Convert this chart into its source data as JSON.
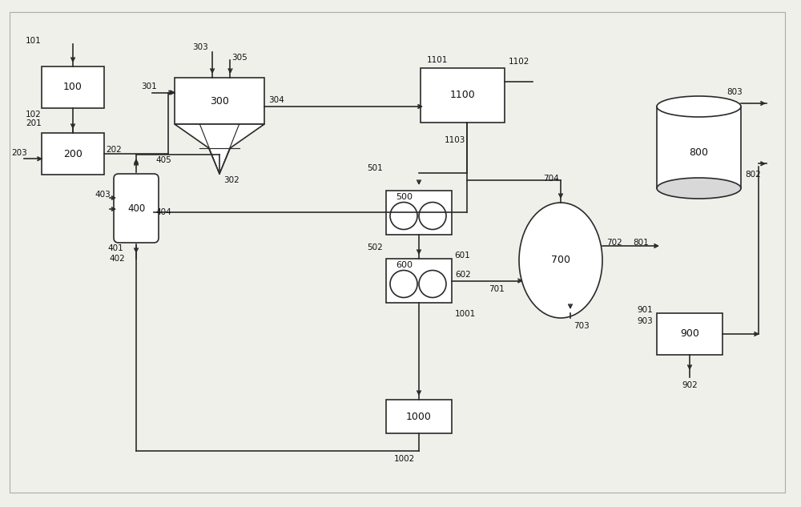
{
  "bg_color": "#f0f0eb",
  "line_color": "#2a2a2a",
  "box_color": "#ffffff",
  "text_color": "#111111",
  "figsize": [
    10.0,
    6.33
  ],
  "dpi": 100
}
